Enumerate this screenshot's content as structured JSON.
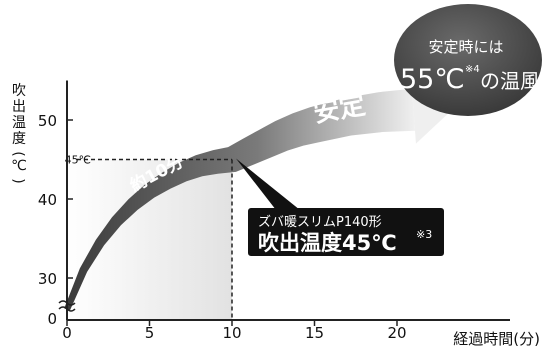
{
  "chart_data": {
    "type": "line",
    "title": "",
    "xlabel": "経過時間(分)",
    "ylabel": "吹出温度(℃)",
    "xlim": [
      0,
      22
    ],
    "ylim": [
      25,
      55
    ],
    "x_ticks": [
      "0",
      "5",
      "10",
      "15",
      "20"
    ],
    "y_ticks": [
      "30",
      "40",
      "50"
    ],
    "y_origin_label": "0",
    "grid": false,
    "series": [
      {
        "values": [
          {
            "x": 0,
            "y": 26
          },
          {
            "x": 1,
            "y": 31
          },
          {
            "x": 2,
            "y": 34.5
          },
          {
            "x": 3,
            "y": 37.2
          },
          {
            "x": 4,
            "y": 39.3
          },
          {
            "x": 5,
            "y": 41
          },
          {
            "x": 6,
            "y": 42.3
          },
          {
            "x": 7,
            "y": 43.4
          },
          {
            "x": 8,
            "y": 44.2
          },
          {
            "x": 9,
            "y": 44.7
          },
          {
            "x": 10,
            "y": 45
          },
          {
            "x": 11,
            "y": 46
          },
          {
            "x": 12,
            "y": 47
          },
          {
            "x": 13,
            "y": 48
          },
          {
            "x": 14,
            "y": 48.8
          },
          {
            "x": 15,
            "y": 49.4
          },
          {
            "x": 17,
            "y": 50.4
          },
          {
            "x": 19,
            "y": 51
          },
          {
            "x": 21,
            "y": 51.3
          }
        ]
      }
    ],
    "reference": {
      "x": 10,
      "y": 45,
      "y_label": "45℃"
    },
    "annotations": {
      "phase1": "約10分",
      "phase2": "安定",
      "callout_line1": "ズバ暖スリムP140形",
      "callout_line2": "吹出温度45℃",
      "callout_note": "※3",
      "bubble_line1": "安定時には",
      "bubble_temp": "55℃",
      "bubble_note": "※4",
      "bubble_rest": "の温風"
    },
    "colors": {
      "arrow_dark": "#3f3f3f",
      "arrow_light": "#e6e6e6",
      "shade": "#ececec",
      "axis": "#222222",
      "callout_bg": "#111111",
      "bubble_bg": "#4a4a4a"
    }
  }
}
